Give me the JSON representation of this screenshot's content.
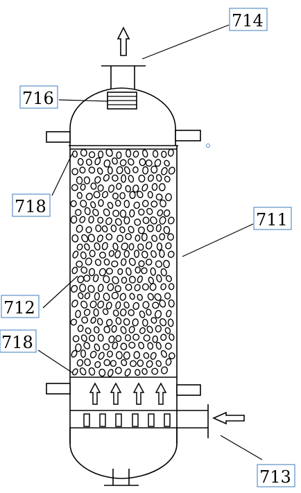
{
  "labels": {
    "l714": "714",
    "l716": "716",
    "l718_top": "718",
    "l711": "711",
    "l712": "712",
    "l718_bottom": "718",
    "l713": "713"
  },
  "colors": {
    "outline": "#000000",
    "label_border": "#5b8fc7",
    "background": "#ffffff"
  }
}
